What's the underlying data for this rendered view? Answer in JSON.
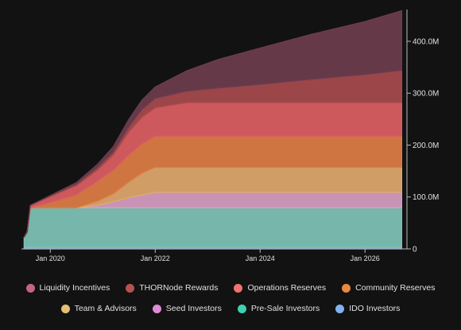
{
  "chart_data": {
    "type": "area",
    "stacked": true,
    "title": "",
    "xlabel": "",
    "ylabel": "",
    "x_ticks": [
      "Jan 2020",
      "Jan 2022",
      "Jan 2024",
      "Jan 2026"
    ],
    "x_tick_values": [
      2020.0,
      2022.0,
      2024.0,
      2026.0
    ],
    "xlim": [
      2019.45,
      2026.8
    ],
    "y_ticks": [
      "0",
      "100.0M",
      "200.0M",
      "300.0M",
      "400.0M"
    ],
    "y_tick_values": [
      0,
      100,
      200,
      300,
      400
    ],
    "ylim": [
      0,
      452
    ],
    "y_unit": "M",
    "legend_position": "bottom",
    "x": [
      2019.5,
      2019.56,
      2019.62,
      2020.0,
      2020.5,
      2020.9,
      2021.2,
      2021.5,
      2021.75,
      2022.0,
      2022.6,
      2023.2,
      2024.0,
      2025.0,
      2026.0,
      2026.7
    ],
    "series": [
      {
        "name": "IDO Investors",
        "color": "#7fa9e8",
        "values": [
          2,
          3,
          3,
          3,
          3,
          3,
          3,
          3,
          3,
          3,
          3,
          3,
          3,
          3,
          3,
          3
        ]
      },
      {
        "name": "Pre-Sale Investors",
        "color": "#7fc4b8",
        "values": [
          20,
          30,
          76,
          76,
          76,
          76,
          76,
          76,
          76,
          76,
          76,
          76,
          76,
          76,
          76,
          76
        ]
      },
      {
        "name": "Seed Investors",
        "color": "#d99ec4",
        "values": [
          0,
          0,
          0,
          0,
          0,
          5,
          12,
          20,
          25,
          30,
          30,
          30,
          30,
          30,
          30,
          30
        ]
      },
      {
        "name": "Team & Advisors",
        "color": "#e0a96d",
        "values": [
          0,
          0,
          0,
          0,
          0,
          8,
          15,
          30,
          42,
          48,
          48,
          48,
          48,
          48,
          48,
          48
        ]
      },
      {
        "name": "Community Reserves",
        "color": "#df7e45",
        "values": [
          0,
          0,
          0,
          10,
          25,
          38,
          45,
          52,
          56,
          60,
          60,
          60,
          60,
          60,
          60,
          60
        ]
      },
      {
        "name": "Operations Reserves",
        "color": "#dd5f63",
        "values": [
          0,
          0,
          5,
          12,
          18,
          22,
          30,
          45,
          52,
          55,
          65,
          65,
          65,
          65,
          65,
          65
        ]
      },
      {
        "name": "THORNode Rewards",
        "color": "#a84b4f",
        "values": [
          0,
          0,
          0,
          1,
          3,
          5,
          6,
          10,
          15,
          18,
          22,
          28,
          35,
          45,
          54,
          62
        ]
      },
      {
        "name": "Liquidity Incentives",
        "color": "#6e3d4e",
        "values": [
          0,
          0,
          0,
          1,
          3,
          6,
          10,
          14,
          18,
          22,
          39,
          55,
          70,
          87,
          102,
          115
        ]
      }
    ]
  },
  "legend": {
    "rows": [
      [
        {
          "label": "Liquidity Incentives",
          "color": "#c2667f"
        },
        {
          "label": "THORNode Rewards",
          "color": "#b5524f"
        },
        {
          "label": "Operations Reserves",
          "color": "#f07272"
        },
        {
          "label": "Community Reserves",
          "color": "#ea8840"
        }
      ],
      [
        {
          "label": "Team & Advisors",
          "color": "#e5bf72"
        },
        {
          "label": "Seed Investors",
          "color": "#e08ad6"
        },
        {
          "label": "Pre-Sale Investors",
          "color": "#3fd1b0"
        },
        {
          "label": "IDO Investors",
          "color": "#7fb2ef"
        }
      ]
    ]
  }
}
